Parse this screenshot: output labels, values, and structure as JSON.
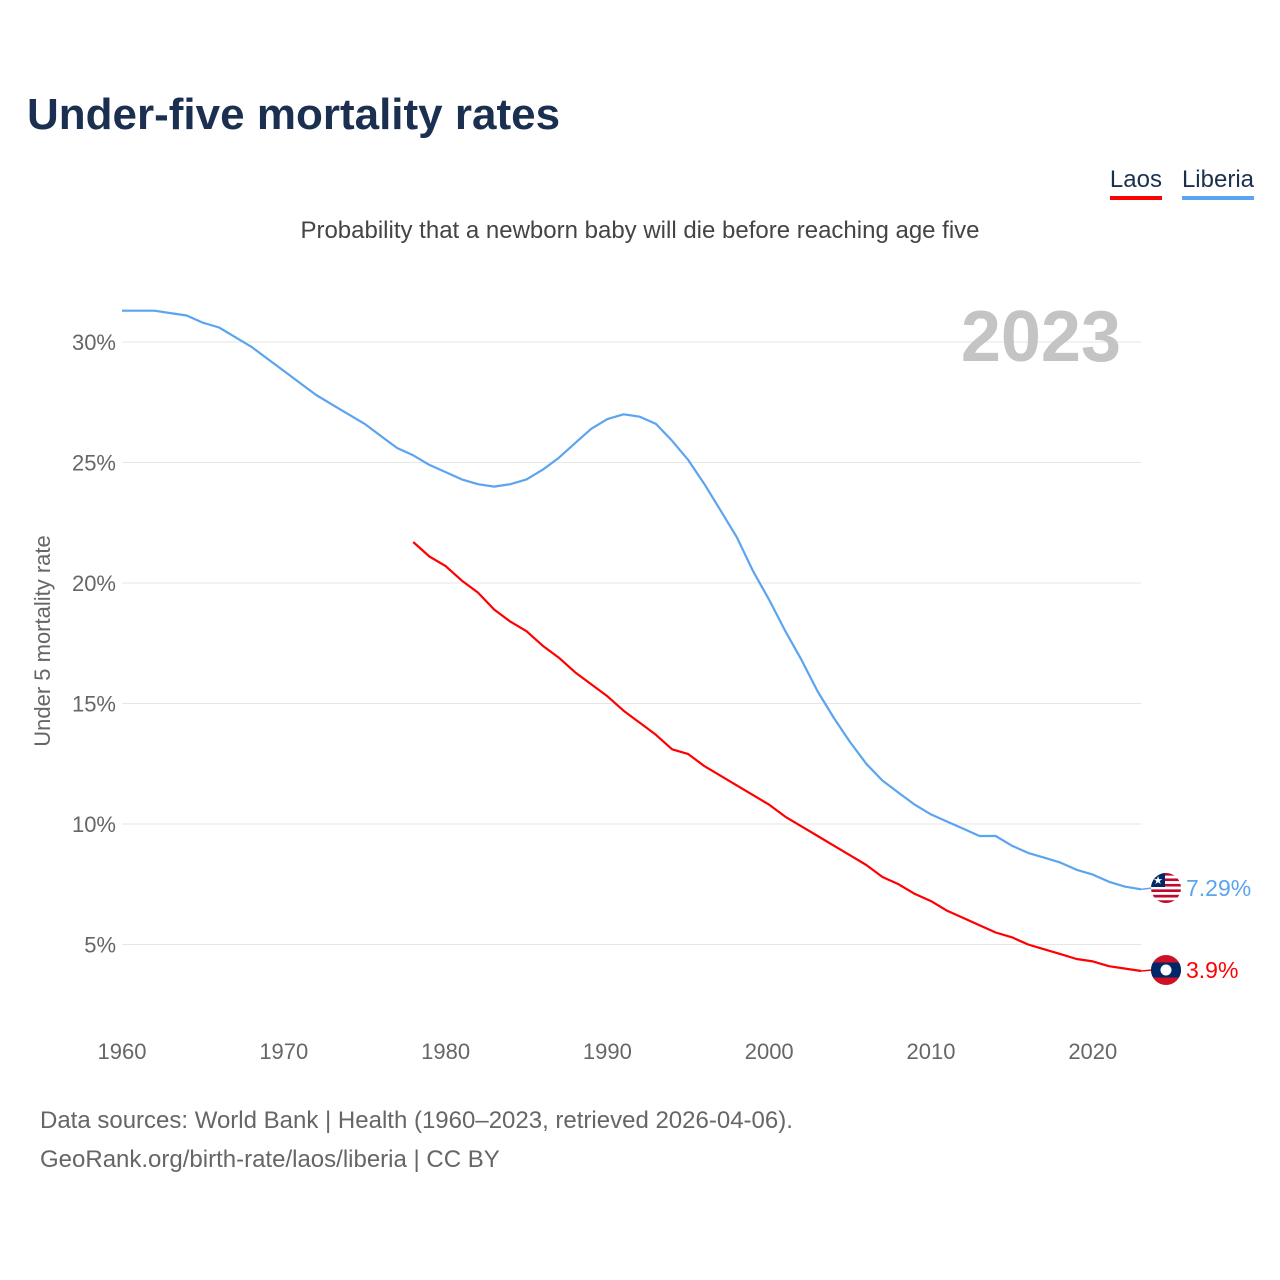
{
  "title": "Under-five mortality rates",
  "subtitle": "Probability that a newborn baby will die before reaching age five",
  "legend": [
    {
      "label": "Laos",
      "color": "#ff0000"
    },
    {
      "label": "Liberia",
      "color": "#5ba4ef"
    }
  ],
  "sources": {
    "line1": "Data sources: World Bank | Health (1960–2023, retrieved 2026-04-06).",
    "line2": "GeoRank.org/birth-rate/laos/liberia | CC BY"
  },
  "chart_data": {
    "type": "line",
    "title": "Under-five mortality rates",
    "ylabel": "Under 5 mortality rate",
    "xlabel": "",
    "year_label": "2023",
    "xlim": [
      1960,
      2023
    ],
    "ylim": [
      0,
      32
    ],
    "x_ticks": [
      "1960",
      "1970",
      "1980",
      "1990",
      "2000",
      "2010",
      "2020"
    ],
    "y_ticks": [
      {
        "v": 5,
        "label": "5%"
      },
      {
        "v": 10,
        "label": "10%"
      },
      {
        "v": 15,
        "label": "15%"
      },
      {
        "v": 20,
        "label": "20%"
      },
      {
        "v": 25,
        "label": "25%"
      },
      {
        "v": 30,
        "label": "30%"
      }
    ],
    "grid": true,
    "series": [
      {
        "name": "Liberia",
        "color": "#5ba4ef",
        "end_label": "7.29%",
        "start": 1960,
        "values": [
          31.3,
          31.3,
          31.3,
          31.2,
          31.1,
          30.8,
          30.6,
          30.2,
          29.8,
          29.3,
          28.8,
          28.3,
          27.8,
          27.4,
          27.0,
          26.6,
          26.1,
          25.6,
          25.3,
          24.9,
          24.6,
          24.3,
          24.1,
          24.0,
          24.1,
          24.3,
          24.7,
          25.2,
          25.8,
          26.4,
          26.8,
          27.0,
          26.9,
          26.6,
          25.9,
          25.1,
          24.1,
          23.0,
          21.9,
          20.5,
          19.3,
          18.0,
          16.8,
          15.5,
          14.4,
          13.4,
          12.5,
          11.8,
          11.3,
          10.8,
          10.4,
          10.1,
          9.8,
          9.5,
          9.5,
          9.1,
          8.8,
          8.6,
          8.4,
          8.1,
          7.9,
          7.6,
          7.4,
          7.29
        ]
      },
      {
        "name": "Laos",
        "color": "#ff0000",
        "end_label": "3.9%",
        "start": 1978,
        "values": [
          21.7,
          21.1,
          20.7,
          20.1,
          19.6,
          18.9,
          18.4,
          18.0,
          17.4,
          16.9,
          16.3,
          15.8,
          15.3,
          14.7,
          14.2,
          13.7,
          13.1,
          12.9,
          12.4,
          12.0,
          11.6,
          11.2,
          10.8,
          10.3,
          9.9,
          9.5,
          9.1,
          8.7,
          8.3,
          7.8,
          7.5,
          7.1,
          6.8,
          6.4,
          6.1,
          5.8,
          5.5,
          5.3,
          5.0,
          4.8,
          4.6,
          4.4,
          4.3,
          4.1,
          4.0,
          3.9
        ]
      }
    ]
  }
}
